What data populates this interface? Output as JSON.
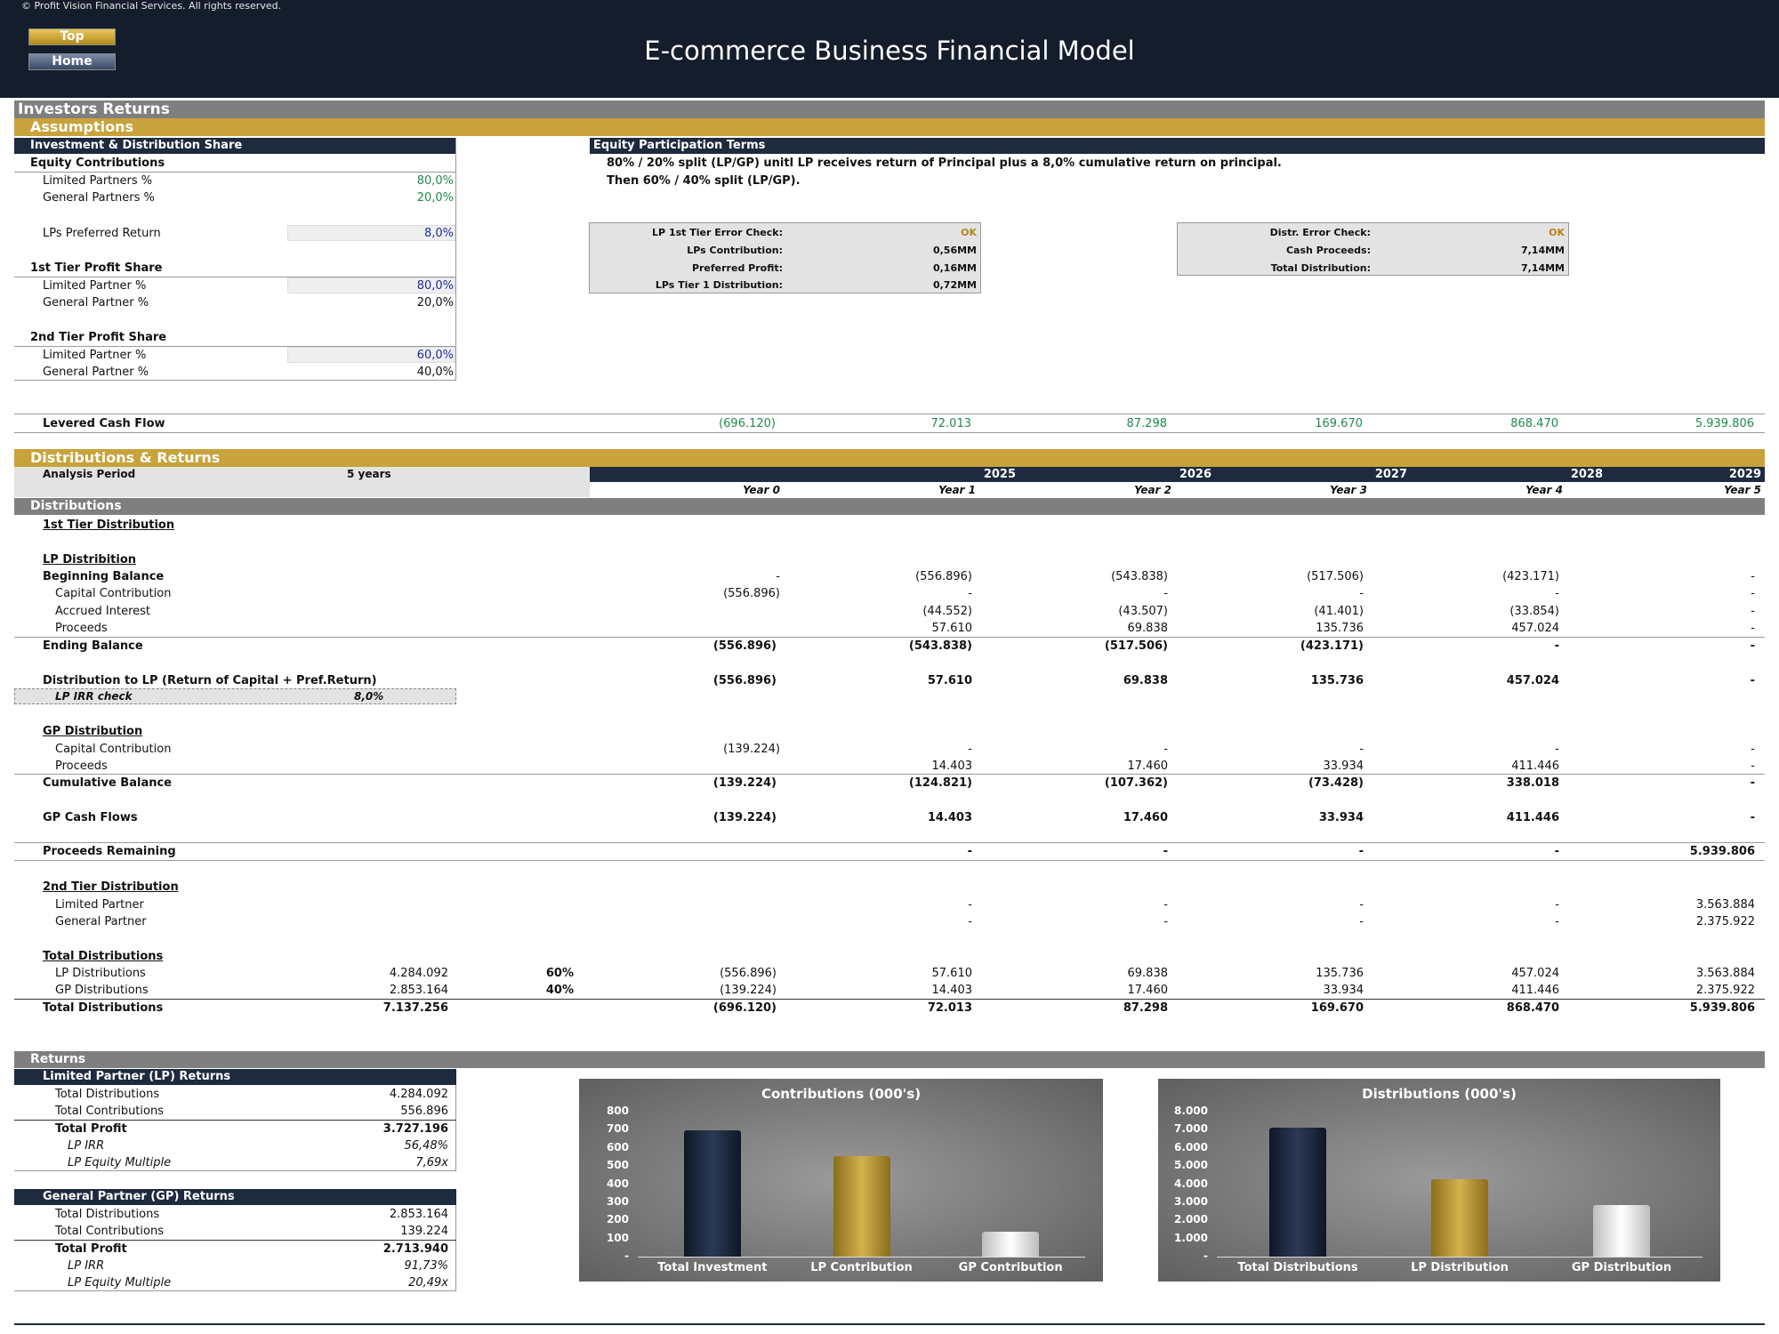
{
  "header": {
    "copyright": "© Profit Vision Financial Services. All rights reserved.",
    "top_btn": "Top",
    "home_btn": "Home",
    "title": "E-commerce Business Financial Model"
  },
  "investors_returns": "Investors Returns",
  "assumptions": {
    "label": "Assumptions",
    "inv_dist_share": "Investment & Distribution Share",
    "equity_contributions": "Equity Contributions",
    "lp_pct_label": "Limited Partners %",
    "lp_pct": "80,0%",
    "gp_pct_label": "General Partners %",
    "gp_pct": "20,0%",
    "pref_label": "LPs Preferred Return",
    "pref": "8,0%",
    "tier1_label": "1st Tier Profit Share",
    "t1_lp_label": "Limited Partner %",
    "t1_lp": "80,0%",
    "t1_gp_label": "General Partner %",
    "t1_gp": "20,0%",
    "tier2_label": "2nd Tier Profit Share",
    "t2_lp_label": "Limited Partner %",
    "t2_lp": "60,0%",
    "t2_gp_label": "General Partner %",
    "t2_gp": "40,0%"
  },
  "terms": {
    "title": "Equity Participation Terms",
    "line1": "80% / 20% split (LP/GP) unitl LP receives return of Principal plus a 8,0% cumulative return on principal.",
    "line2": "Then 60% / 40% split (LP/GP)."
  },
  "check1": {
    "rows": [
      {
        "label": "LP 1st Tier Error Check:",
        "value": "OK"
      },
      {
        "label": "LPs Contribution:",
        "value": "0,56MM"
      },
      {
        "label": "Preferred Profit:",
        "value": "0,16MM"
      },
      {
        "label": "LPs Tier 1 Distribution:",
        "value": "0,72MM"
      }
    ]
  },
  "check2": {
    "rows": [
      {
        "label": "Distr. Error Check:",
        "value": "OK"
      },
      {
        "label": "Cash Proceeds:",
        "value": "7,14MM"
      },
      {
        "label": "Total Distribution:",
        "value": "7,14MM"
      }
    ]
  },
  "levered": {
    "label": "Levered Cash Flow",
    "values": [
      "(696.120)",
      "72.013",
      "87.298",
      "169.670",
      "868.470",
      "5.939.806"
    ]
  },
  "dist_returns": {
    "label": "Distributions & Returns",
    "analysis_label": "Analysis Period",
    "analysis_value": "5 years",
    "calendar_years": [
      "2025",
      "2026",
      "2027",
      "2028",
      "2029"
    ],
    "period_labels": [
      "Year 0",
      "Year 1",
      "Year 2",
      "Year 3",
      "Year 4",
      "Year 5"
    ],
    "distributions_label": "Distributions",
    "tier1_label": "1st Tier Distribution",
    "lp_dist_label": "LP Distribition",
    "beginning": {
      "label": "Beginning Balance",
      "values": [
        "-",
        "(556.896)",
        "(543.838)",
        "(517.506)",
        "(423.171)",
        "-"
      ]
    },
    "capital": {
      "label": "Capital Contribution",
      "values": [
        "(556.896)",
        "-",
        "-",
        "-",
        "-",
        "-"
      ]
    },
    "accrued": {
      "label": "Accrued Interest",
      "values": [
        "",
        "(44.552)",
        "(43.507)",
        "(41.401)",
        "(33.854)",
        "-"
      ]
    },
    "proceeds": {
      "label": "Proceeds",
      "values": [
        "",
        "57.610",
        "69.838",
        "135.736",
        "457.024",
        "-"
      ]
    },
    "ending": {
      "label": "Ending Balance",
      "values": [
        "(556.896)",
        "(543.838)",
        "(517.506)",
        "(423.171)",
        "-",
        "-"
      ]
    },
    "dist_lp": {
      "label": "Distribution to LP (Return of Capital + Pref.Return)",
      "values": [
        "(556.896)",
        "57.610",
        "69.838",
        "135.736",
        "457.024",
        "-"
      ]
    },
    "irr_check_label": "LP IRR check",
    "irr_check_value": "8,0%",
    "gp_dist_label": "GP Distribution",
    "gp_capital": {
      "label": "Capital Contribution",
      "values": [
        "(139.224)",
        "-",
        "-",
        "-",
        "-",
        "-"
      ]
    },
    "gp_proceeds": {
      "label": "Proceeds",
      "values": [
        "",
        "14.403",
        "17.460",
        "33.934",
        "411.446",
        "-"
      ]
    },
    "cumulative": {
      "label": "Cumulative Balance",
      "values": [
        "(139.224)",
        "(124.821)",
        "(107.362)",
        "(73.428)",
        "338.018",
        "-"
      ]
    },
    "gp_cash": {
      "label": "GP Cash Flows",
      "values": [
        "(139.224)",
        "14.403",
        "17.460",
        "33.934",
        "411.446",
        "-"
      ]
    },
    "remaining": {
      "label": "Proceeds Remaining",
      "values": [
        "",
        "-",
        "-",
        "-",
        "-",
        "5.939.806"
      ]
    },
    "tier2_label": "2nd Tier Distribution",
    "t2_lp": {
      "label": "Limited Partner",
      "values": [
        "",
        "-",
        "-",
        "-",
        "-",
        "3.563.884"
      ]
    },
    "t2_gp": {
      "label": "General Partner",
      "values": [
        "",
        "-",
        "-",
        "-",
        "-",
        "2.375.922"
      ]
    },
    "total_label": "Total Distributions",
    "lp_total": {
      "label": "LP Distributions",
      "sum": "4.284.092",
      "pct": "60%",
      "values": [
        "(556.896)",
        "57.610",
        "69.838",
        "135.736",
        "457.024",
        "3.563.884"
      ]
    },
    "gp_total": {
      "label": "GP Distributions",
      "sum": "2.853.164",
      "pct": "40%",
      "values": [
        "(139.224)",
        "14.403",
        "17.460",
        "33.934",
        "411.446",
        "2.375.922"
      ]
    },
    "grand_total": {
      "label": "Total Distributions",
      "sum": "7.137.256",
      "values": [
        "(696.120)",
        "72.013",
        "87.298",
        "169.670",
        "868.470",
        "5.939.806"
      ]
    }
  },
  "returns": {
    "label": "Returns",
    "lp": {
      "title": "Limited Partner (LP) Returns",
      "rows": [
        {
          "label": "Total Distributions",
          "value": "4.284.092"
        },
        {
          "label": "Total Contributions",
          "value": "556.896"
        },
        {
          "label": "Total Profit",
          "value": "3.727.196"
        },
        {
          "label": "LP IRR",
          "value": "56,48%"
        },
        {
          "label": "LP Equity Multiple",
          "value": "7,69x"
        }
      ]
    },
    "gp": {
      "title": "General Partner (GP) Returns",
      "rows": [
        {
          "label": "Total Distributions",
          "value": "2.853.164"
        },
        {
          "label": "Total Contributions",
          "value": "139.224"
        },
        {
          "label": "Total Profit",
          "value": "2.713.940"
        },
        {
          "label": "LP IRR",
          "value": "91,73%"
        },
        {
          "label": "LP Equity Multiple",
          "value": "20,49x"
        }
      ]
    }
  },
  "chart_data": [
    {
      "type": "bar",
      "title": "Contributions (000's)",
      "categories": [
        "Total Investment",
        "LP Contribution",
        "GP Contribution"
      ],
      "values": [
        696,
        557,
        139
      ],
      "ylim": [
        0,
        800
      ],
      "yticks": [
        "-",
        "100",
        "200",
        "300",
        "400",
        "500",
        "600",
        "700",
        "800"
      ],
      "colors": [
        "#1e2a3e",
        "#c8a23a",
        "#ffffff"
      ]
    },
    {
      "type": "bar",
      "title": "Distributions (000's)",
      "categories": [
        "Total Distributions",
        "LP Distribution",
        "GP Distribution"
      ],
      "values": [
        7137,
        4284,
        2853
      ],
      "ylim": [
        0,
        8000
      ],
      "yticks": [
        "-",
        "1.000",
        "2.000",
        "3.000",
        "4.000",
        "5.000",
        "6.000",
        "7.000",
        "8.000"
      ],
      "colors": [
        "#1e2a3e",
        "#c8a23a",
        "#ffffff"
      ]
    }
  ]
}
